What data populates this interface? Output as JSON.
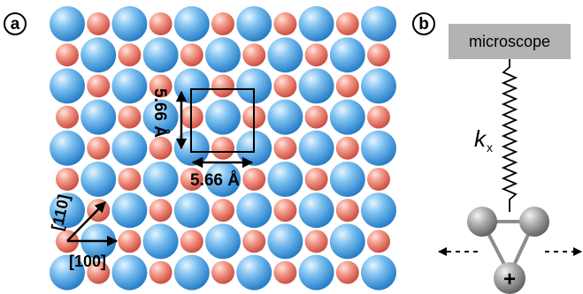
{
  "panel_a": {
    "label": "a",
    "dimension_horizontal": "5.66 Å",
    "dimension_vertical": "5.66 Å",
    "direction_110": "[110]",
    "direction_100": "[100]",
    "colors": {
      "large_atom": "#3f9fe0",
      "small_atom": "#ec7a68"
    }
  },
  "panel_b": {
    "label": "b",
    "microscope_label": "microscope",
    "spring_constant_symbol": "k",
    "spring_constant_subscript": "x",
    "charge_symbol": "+",
    "colors": {
      "microscope_box": "#b3b3b3",
      "molecule_atoms": "#8c8c8c"
    }
  }
}
